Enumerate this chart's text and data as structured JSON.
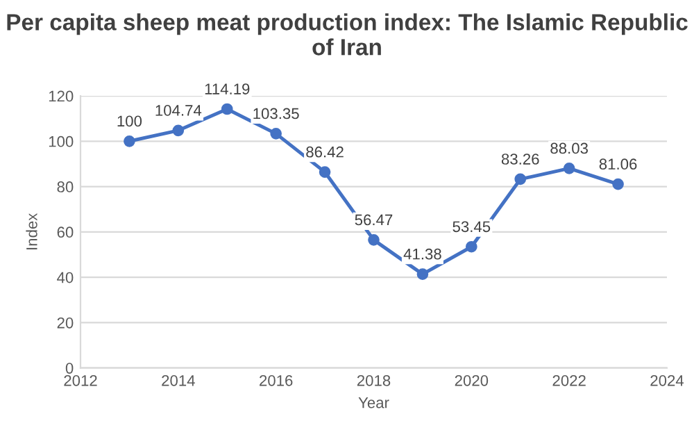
{
  "chart_data": {
    "type": "line",
    "title": "Per capita sheep meat production index: The Islamic Republic of Iran",
    "xlabel": "Year",
    "ylabel": "Index",
    "x": [
      2013,
      2014,
      2015,
      2016,
      2017,
      2018,
      2019,
      2020,
      2021,
      2022,
      2023
    ],
    "series": [
      {
        "color": "#4472c4",
        "values": [
          100,
          104.74,
          114.19,
          103.35,
          86.42,
          56.47,
          41.38,
          53.45,
          83.26,
          88.03,
          81.06
        ]
      }
    ],
    "xlim": [
      2012,
      2024
    ],
    "xticks": [
      2012,
      2014,
      2016,
      2018,
      2020,
      2022,
      2024
    ],
    "ylim": [
      0,
      120
    ],
    "yticks": [
      0,
      20,
      40,
      60,
      80,
      100,
      120
    ],
    "grid": "y",
    "marker": "circle",
    "line_style": "solid",
    "data_labels": true
  }
}
